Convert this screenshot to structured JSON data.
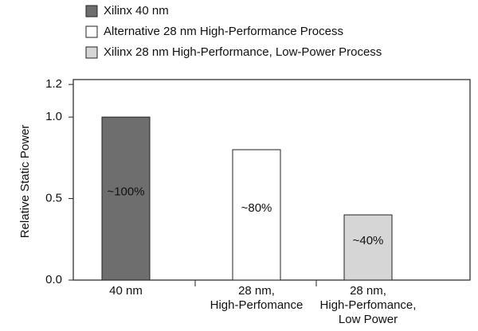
{
  "chart_data": {
    "type": "bar",
    "y_label": "Relative Static Power",
    "categories": [
      [
        "40 nm"
      ],
      [
        "28 nm,",
        "High-Perfomance"
      ],
      [
        "28 nm,",
        "High-Perfomance,",
        "Low Power"
      ]
    ],
    "series": [
      {
        "name": "Xilinx 40 nm",
        "color": "#6e6e6e",
        "values": [
          1.0,
          null,
          null
        ],
        "value_labels": [
          "~100%",
          null,
          null
        ]
      },
      {
        "name": "Alternative 28 nm High-Performance Process",
        "color": "#ffffff",
        "values": [
          null,
          0.8,
          null
        ],
        "value_labels": [
          null,
          "~80%",
          null
        ]
      },
      {
        "name": "Xilinx 28 nm High-Performance, Low-Power Process",
        "color": "#d6d6d6",
        "values": [
          null,
          null,
          0.4
        ],
        "value_labels": [
          null,
          null,
          "~40%"
        ]
      }
    ],
    "ylim": [
      0,
      1.23
    ],
    "yticks": [
      {
        "value": 0,
        "label": "0.0"
      },
      0.5,
      {
        "value": 1,
        "label": "1.0"
      },
      1.2
    ]
  }
}
